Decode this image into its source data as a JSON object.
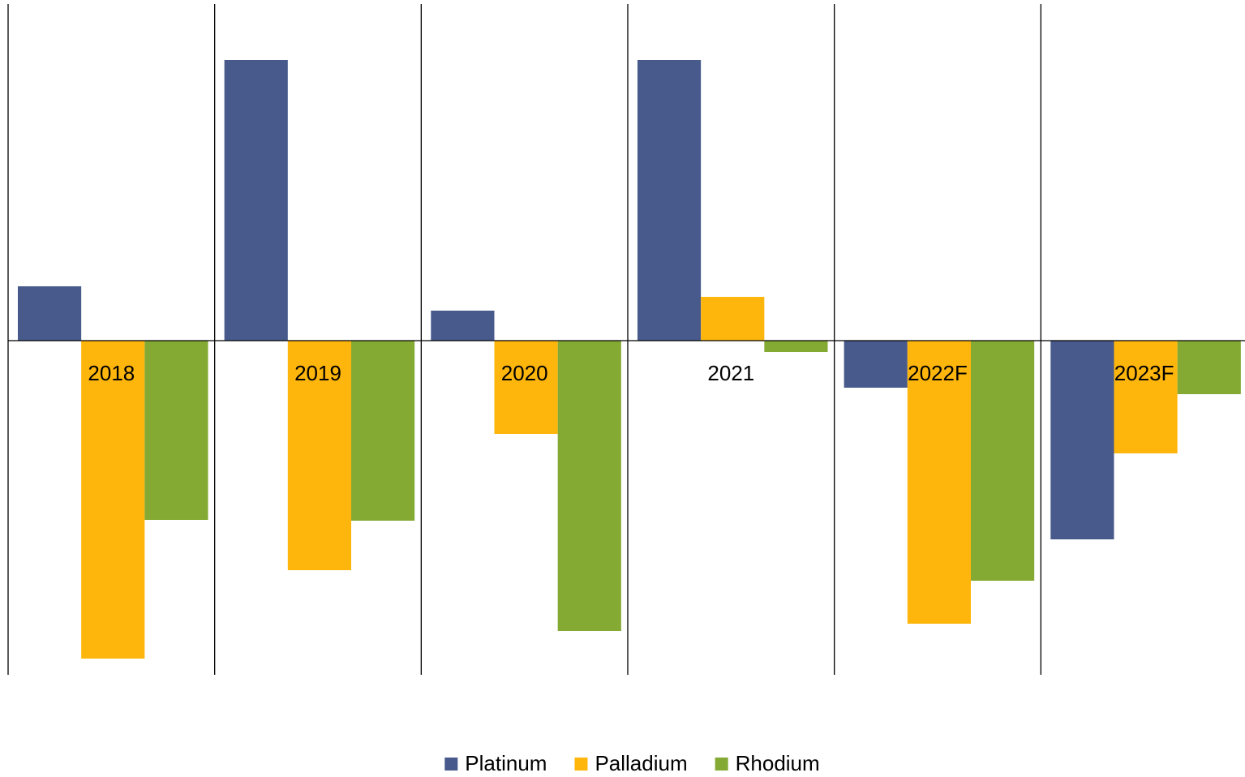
{
  "chart_data": {
    "type": "bar",
    "categories": [
      "2018",
      "2019",
      "2020",
      "2021",
      "2022F",
      "2023F"
    ],
    "series": [
      {
        "name": "Platinum",
        "color": "#475a8b",
        "values": [
          67,
          346,
          37,
          346,
          -58,
          -245
        ]
      },
      {
        "name": "Palladium",
        "color": "#ffb60c",
        "values": [
          -392,
          -283,
          -115,
          54,
          -349,
          -139
        ]
      },
      {
        "name": "Rhodium",
        "color": "#85aa34",
        "values": [
          -221,
          -222,
          -358,
          -14,
          -296,
          -66
        ]
      }
    ],
    "ylim": [
      -412,
      415
    ],
    "legend": "bottom"
  }
}
